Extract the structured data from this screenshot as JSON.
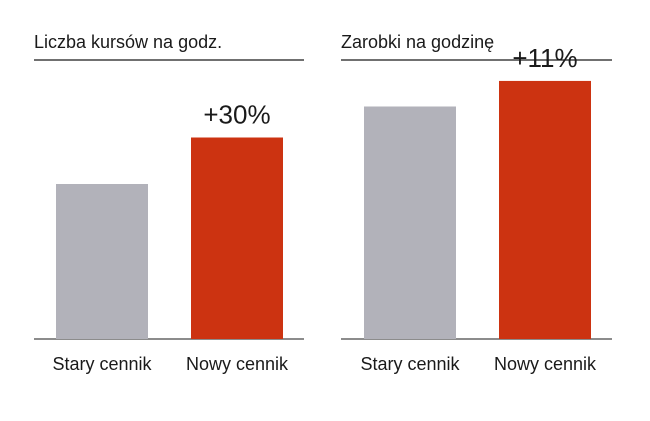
{
  "chart_data": [
    {
      "type": "bar",
      "title": "Liczba kursów na godz.",
      "categories": [
        "Stary cennik",
        "Nowy cennik"
      ],
      "values": [
        100,
        130
      ],
      "ylim": [
        0,
        180
      ],
      "annotation": "+30%",
      "colors": [
        "#b2b2ba",
        "#cc3311"
      ],
      "grid": false
    },
    {
      "type": "bar",
      "title": "Zarobki na godzinę",
      "categories": [
        "Stary cennik",
        "Nowy cennik"
      ],
      "values": [
        100,
        111
      ],
      "ylim": [
        0,
        120
      ],
      "annotation": "+11%",
      "colors": [
        "#b2b2ba",
        "#cc3311"
      ],
      "grid": false
    }
  ]
}
